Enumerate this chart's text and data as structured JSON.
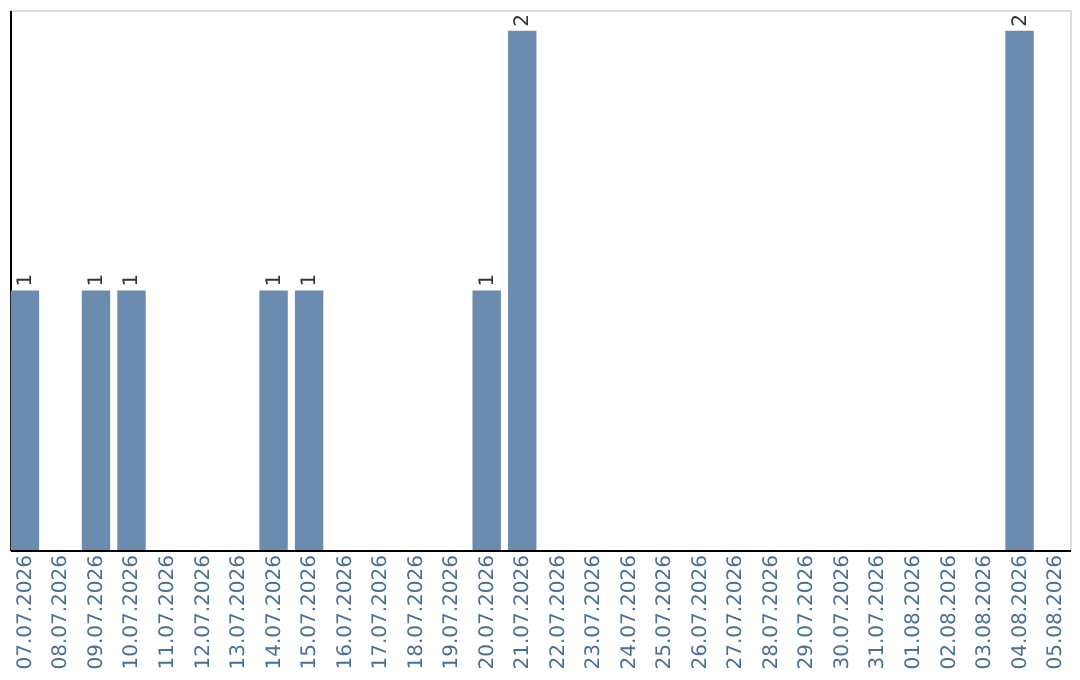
{
  "chart_data": {
    "type": "bar",
    "categories": [
      "07.07.2026",
      "08.07.2026",
      "09.07.2026",
      "10.07.2026",
      "11.07.2026",
      "12.07.2026",
      "13.07.2026",
      "14.07.2026",
      "15.07.2026",
      "16.07.2026",
      "17.07.2026",
      "18.07.2026",
      "19.07.2026",
      "20.07.2026",
      "21.07.2026",
      "22.07.2026",
      "23.07.2026",
      "24.07.2026",
      "25.07.2026",
      "26.07.2026",
      "27.07.2026",
      "28.07.2026",
      "29.07.2026",
      "30.07.2026",
      "31.07.2026",
      "01.08.2026",
      "02.08.2026",
      "03.08.2026",
      "04.08.2026",
      "05.08.2026"
    ],
    "values": [
      1,
      0,
      1,
      1,
      0,
      0,
      0,
      1,
      1,
      0,
      0,
      0,
      0,
      1,
      2,
      0,
      0,
      0,
      0,
      0,
      0,
      0,
      0,
      0,
      0,
      0,
      0,
      0,
      2,
      0
    ],
    "value_labels": [
      "1",
      null,
      "1",
      "1",
      null,
      null,
      null,
      "1",
      "1",
      null,
      null,
      null,
      null,
      "1",
      "2",
      null,
      null,
      null,
      null,
      null,
      null,
      null,
      null,
      null,
      null,
      null,
      null,
      null,
      "2",
      null
    ],
    "color": "#6b8cae",
    "ylim": [
      0,
      2.08
    ],
    "grid": false,
    "tick_labels": "x"
  }
}
